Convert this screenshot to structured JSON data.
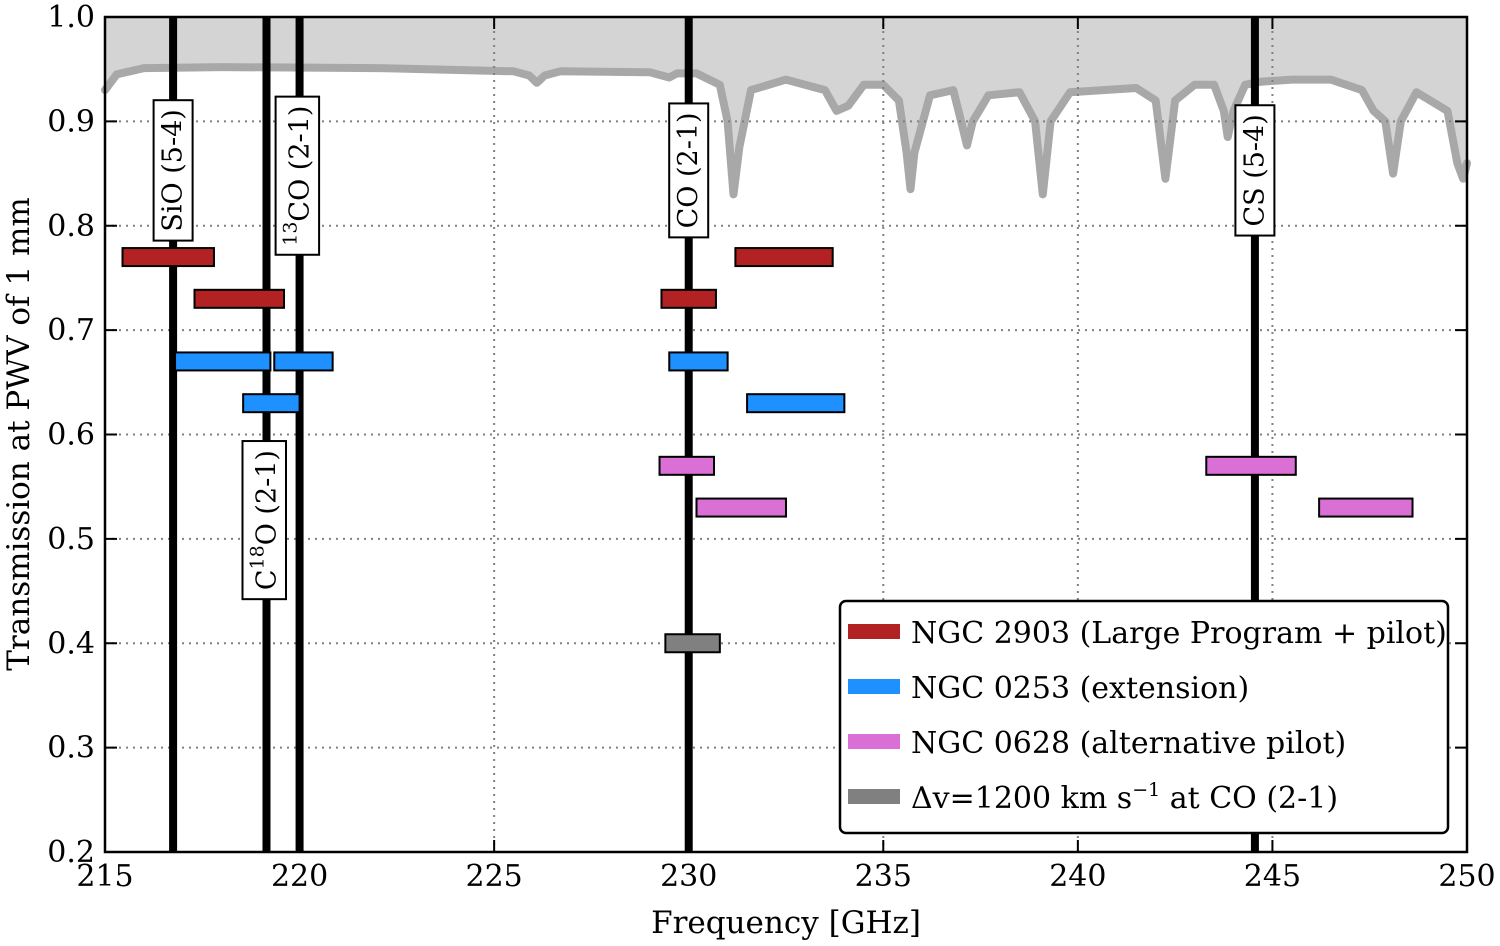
{
  "chart_data": {
    "type": "line",
    "xlabel": "Frequency [GHz]",
    "ylabel": "Transmission at PWV of 1 mm",
    "xlim": [
      215,
      250
    ],
    "ylim": [
      0.2,
      1.0
    ],
    "x_ticks": [
      215,
      220,
      225,
      230,
      235,
      240,
      245,
      250
    ],
    "x_tick_labels": [
      "215",
      "220",
      "225",
      "230",
      "235",
      "240",
      "245",
      "250"
    ],
    "y_ticks": [
      0.2,
      0.3,
      0.4,
      0.5,
      0.6,
      0.7,
      0.8,
      0.9,
      1.0
    ],
    "y_tick_labels": [
      "0.2",
      "0.3",
      "0.4",
      "0.5",
      "0.6",
      "0.7",
      "0.8",
      "0.9",
      "1.0"
    ],
    "grid": true,
    "legend_position": "bottom-right",
    "transmission": {
      "color": "#a8a8a8",
      "fill_color": "#d4d4d4",
      "baseline": 0.95,
      "points": [
        [
          215.0,
          0.93
        ],
        [
          215.3,
          0.945
        ],
        [
          216,
          0.951
        ],
        [
          218,
          0.952
        ],
        [
          222,
          0.951
        ],
        [
          225.5,
          0.948
        ],
        [
          225.9,
          0.944
        ],
        [
          226.1,
          0.937
        ],
        [
          226.3,
          0.944
        ],
        [
          226.7,
          0.948
        ],
        [
          229.0,
          0.947
        ],
        [
          229.5,
          0.942
        ],
        [
          229.7,
          0.946
        ],
        [
          230.2,
          0.946
        ],
        [
          230.8,
          0.935
        ],
        [
          231.0,
          0.9
        ],
        [
          231.15,
          0.83
        ],
        [
          231.3,
          0.875
        ],
        [
          231.6,
          0.93
        ],
        [
          232.5,
          0.94
        ],
        [
          233.5,
          0.93
        ],
        [
          233.8,
          0.91
        ],
        [
          234.1,
          0.915
        ],
        [
          234.5,
          0.935
        ],
        [
          235.0,
          0.935
        ],
        [
          235.4,
          0.92
        ],
        [
          235.6,
          0.87
        ],
        [
          235.7,
          0.835
        ],
        [
          235.8,
          0.87
        ],
        [
          236.2,
          0.925
        ],
        [
          236.8,
          0.93
        ],
        [
          237.0,
          0.9
        ],
        [
          237.15,
          0.877
        ],
        [
          237.3,
          0.9
        ],
        [
          237.7,
          0.925
        ],
        [
          238.5,
          0.928
        ],
        [
          238.9,
          0.9
        ],
        [
          239.1,
          0.83
        ],
        [
          239.3,
          0.9
        ],
        [
          239.8,
          0.928
        ],
        [
          241.5,
          0.932
        ],
        [
          242.0,
          0.92
        ],
        [
          242.25,
          0.845
        ],
        [
          242.5,
          0.92
        ],
        [
          243.0,
          0.935
        ],
        [
          243.5,
          0.935
        ],
        [
          243.75,
          0.91
        ],
        [
          243.85,
          0.885
        ],
        [
          244.0,
          0.91
        ],
        [
          244.3,
          0.935
        ],
        [
          244.7,
          0.938
        ],
        [
          245.5,
          0.94
        ],
        [
          246.5,
          0.94
        ],
        [
          247.3,
          0.93
        ],
        [
          247.6,
          0.91
        ],
        [
          247.9,
          0.9
        ],
        [
          248.1,
          0.85
        ],
        [
          248.3,
          0.9
        ],
        [
          248.7,
          0.928
        ],
        [
          249.5,
          0.91
        ],
        [
          249.75,
          0.86
        ],
        [
          249.9,
          0.845
        ],
        [
          250.0,
          0.86
        ]
      ]
    },
    "lines": [
      {
        "freq": 216.75,
        "label": "SiO (5-4)",
        "label_y": 0.853
      },
      {
        "freq": 219.15,
        "label_parts": [
          "C",
          "18",
          "O (2-1)"
        ],
        "label_y": 0.518
      },
      {
        "freq": 220.0,
        "label_parts": [
          "",
          "13",
          "CO (2-1)"
        ],
        "label_y": 0.848
      },
      {
        "freq": 230.0,
        "label": "CO (2-1)",
        "label_y": 0.853
      },
      {
        "freq": 244.55,
        "label": "CS (5-4)",
        "label_y": 0.853
      }
    ],
    "bands": [
      {
        "series": "NGC 2903 (Large Program + pilot)",
        "xmin": 215.45,
        "xmax": 217.8,
        "y": 0.77
      },
      {
        "series": "NGC 2903 (Large Program + pilot)",
        "xmin": 217.3,
        "xmax": 219.6,
        "y": 0.73
      },
      {
        "series": "NGC 2903 (Large Program + pilot)",
        "xmin": 229.3,
        "xmax": 230.7,
        "y": 0.73
      },
      {
        "series": "NGC 2903 (Large Program + pilot)",
        "xmin": 231.2,
        "xmax": 233.7,
        "y": 0.77
      },
      {
        "series": "NGC 0253 (extension)",
        "xmin": 216.8,
        "xmax": 219.25,
        "y": 0.67
      },
      {
        "series": "NGC 0253 (extension)",
        "xmin": 219.35,
        "xmax": 220.85,
        "y": 0.67
      },
      {
        "series": "NGC 0253 (extension)",
        "xmin": 218.55,
        "xmax": 220.0,
        "y": 0.63
      },
      {
        "series": "NGC 0253 (extension)",
        "xmin": 229.5,
        "xmax": 231.0,
        "y": 0.67
      },
      {
        "series": "NGC 0253 (extension)",
        "xmin": 231.5,
        "xmax": 234.0,
        "y": 0.63
      },
      {
        "series": "NGC 0628 (alternative pilot)",
        "xmin": 229.25,
        "xmax": 230.65,
        "y": 0.57
      },
      {
        "series": "NGC 0628 (alternative pilot)",
        "xmin": 230.2,
        "xmax": 232.5,
        "y": 0.53
      },
      {
        "series": "NGC 0628 (alternative pilot)",
        "xmin": 243.3,
        "xmax": 245.6,
        "y": 0.57
      },
      {
        "series": "NGC 0628 (alternative pilot)",
        "xmin": 246.2,
        "xmax": 248.6,
        "y": 0.53
      },
      {
        "series": "Δv=1200 km s−1 at CO (2-1)",
        "xmin": 229.4,
        "xmax": 230.8,
        "y": 0.4
      }
    ],
    "series": [
      {
        "name": "NGC 2903 (Large Program + pilot)",
        "color": "#b22222"
      },
      {
        "name": "NGC 0253 (extension)",
        "color": "#1e90ff"
      },
      {
        "name": "NGC 0628 (alternative pilot)",
        "color": "#da70d6"
      },
      {
        "name": "Δv=1200 km s−1 at CO (2-1)",
        "color": "#808080"
      }
    ],
    "legend": [
      {
        "color": "#b22222",
        "text_parts": [
          "NGC 2903 (Large Program + pilot)"
        ]
      },
      {
        "color": "#1e90ff",
        "text_parts": [
          "NGC 0253 (extension)"
        ]
      },
      {
        "color": "#da70d6",
        "text_parts": [
          "NGC 0628 (alternative pilot)"
        ]
      },
      {
        "color": "#808080",
        "text_parts": [
          "Δv=1200 km s",
          "−1",
          " at CO (2-1)"
        ]
      }
    ]
  }
}
